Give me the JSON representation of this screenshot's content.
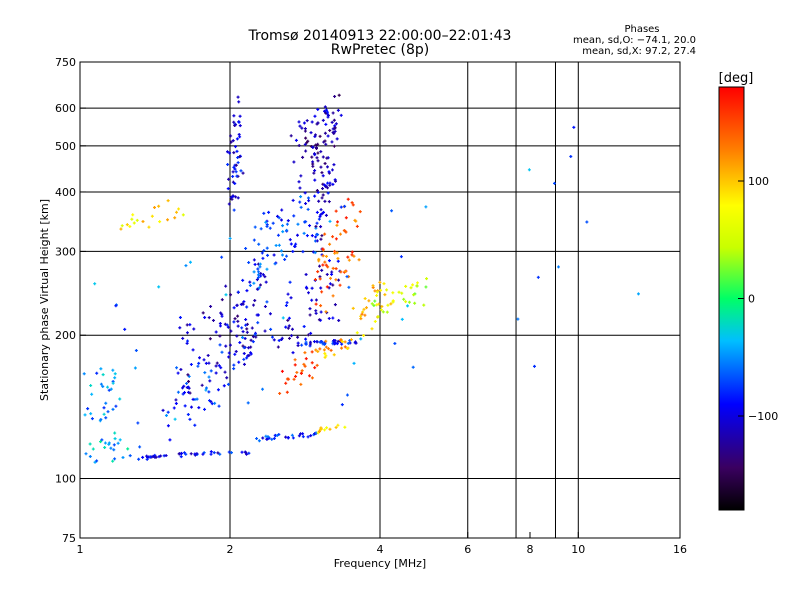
{
  "chart_data": {
    "type": "scatter",
    "title": "Tromsø 20140913 22:00:00–22:01:43",
    "subtitle": "RwPretec (8p)",
    "xlabel": "Frequency [MHz]",
    "ylabel": "Stationary phase Virtual Height [km]",
    "x_scale": "log",
    "y_scale": "log",
    "xlim": [
      1,
      16
    ],
    "ylim": [
      75,
      750
    ],
    "x_ticks": [
      1,
      2,
      4,
      6,
      8,
      10,
      16
    ],
    "x_tick_labels": [
      "1",
      "2",
      "4",
      "6",
      "8",
      "10",
      "16"
    ],
    "x_grid": [
      2,
      4,
      6,
      7.5,
      9,
      10
    ],
    "y_ticks": [
      75,
      100,
      200,
      300,
      400,
      500,
      600,
      750
    ],
    "y_tick_labels": [
      "75",
      "100",
      "200",
      "300",
      "400",
      "500",
      "600",
      "750"
    ],
    "y_grid": [
      100,
      200,
      300,
      400,
      500,
      600
    ],
    "grid": true,
    "stats": {
      "heading": "Phases",
      "line_o": "mean, sd,O: −74.1, 20.0",
      "line_x": "mean, sd,X:  97.2, 27.4"
    },
    "colorbar": {
      "label": "[deg]",
      "range": [
        -180,
        180
      ],
      "ticks": [
        100,
        0,
        -100
      ],
      "tick_labels": [
        "100",
        "0",
        "−100"
      ]
    },
    "series": [
      {
        "traces": [
          {
            "f0": 1.0,
            "f1": 1.3,
            "h0": 100,
            "h1": 130,
            "n": 24,
            "phase": -40,
            "spread": 0.05
          },
          {
            "f0": 1.0,
            "f1": 1.2,
            "h0": 120,
            "h1": 180,
            "n": 30,
            "phase": -50,
            "spread": 0.06
          },
          {
            "f0": 1.3,
            "f1": 1.6,
            "h0": 110,
            "h1": 112,
            "n": 18,
            "phase": -100,
            "spread": 0.01
          },
          {
            "f0": 1.55,
            "f1": 2.2,
            "h0": 112,
            "h1": 114,
            "n": 26,
            "phase": -90,
            "spread": 0.01
          },
          {
            "f0": 1.5,
            "f1": 2.0,
            "h0": 120,
            "h1": 200,
            "n": 50,
            "phase": -80,
            "spread": 0.05
          },
          {
            "f0": 1.6,
            "f1": 2.2,
            "h0": 140,
            "h1": 280,
            "n": 60,
            "phase": -110,
            "spread": 0.07
          },
          {
            "f0": 2.0,
            "f1": 2.4,
            "h0": 160,
            "h1": 300,
            "n": 60,
            "phase": -95,
            "spread": 0.07
          },
          {
            "f0": 2.0,
            "f1": 2.1,
            "h0": 350,
            "h1": 640,
            "n": 50,
            "phase": -100,
            "spread": 0.04
          },
          {
            "f0": 2.2,
            "f1": 3.0,
            "h0": 250,
            "h1": 420,
            "n": 80,
            "phase": -75,
            "spread": 0.07
          },
          {
            "f0": 2.5,
            "f1": 3.3,
            "h0": 180,
            "h1": 300,
            "n": 60,
            "phase": -105,
            "spread": 0.07
          },
          {
            "f0": 2.2,
            "f1": 3.0,
            "h0": 120,
            "h1": 125,
            "n": 30,
            "phase": -85,
            "spread": 0.01
          },
          {
            "f0": 2.7,
            "f1": 3.6,
            "h0": 190,
            "h1": 195,
            "n": 40,
            "phase": -90,
            "spread": 0.01
          },
          {
            "f0": 2.7,
            "f1": 3.3,
            "h0": 400,
            "h1": 650,
            "n": 70,
            "phase": -120,
            "spread": 0.05
          },
          {
            "f0": 3.0,
            "f1": 3.2,
            "h0": 300,
            "h1": 650,
            "n": 60,
            "phase": -110,
            "spread": 0.05
          },
          {
            "f0": 3.0,
            "f1": 3.6,
            "h0": 220,
            "h1": 400,
            "n": 60,
            "phase": 140,
            "spread": 0.06
          },
          {
            "f0": 2.5,
            "f1": 3.0,
            "h0": 150,
            "h1": 190,
            "n": 25,
            "phase": 150,
            "spread": 0.05
          },
          {
            "f0": 3.6,
            "f1": 4.2,
            "h0": 195,
            "h1": 270,
            "n": 28,
            "phase": 100,
            "spread": 0.06
          },
          {
            "f0": 3.9,
            "f1": 5.0,
            "h0": 220,
            "h1": 260,
            "n": 30,
            "phase": 50,
            "spread": 0.05
          },
          {
            "f0": 3.0,
            "f1": 3.5,
            "h0": 180,
            "h1": 200,
            "n": 22,
            "phase": 110,
            "spread": 0.04
          },
          {
            "f0": 2.9,
            "f1": 3.4,
            "h0": 125,
            "h1": 130,
            "n": 12,
            "phase": 95,
            "spread": 0.02
          },
          {
            "f0": 1.2,
            "f1": 1.6,
            "h0": 330,
            "h1": 380,
            "n": 20,
            "phase": 85,
            "spread": 0.06
          },
          {
            "f0": 1.0,
            "f1": 16.0,
            "h0": 90,
            "h1": 650,
            "n": 60,
            "phase": -60,
            "spread": 0.2
          }
        ]
      }
    ]
  }
}
